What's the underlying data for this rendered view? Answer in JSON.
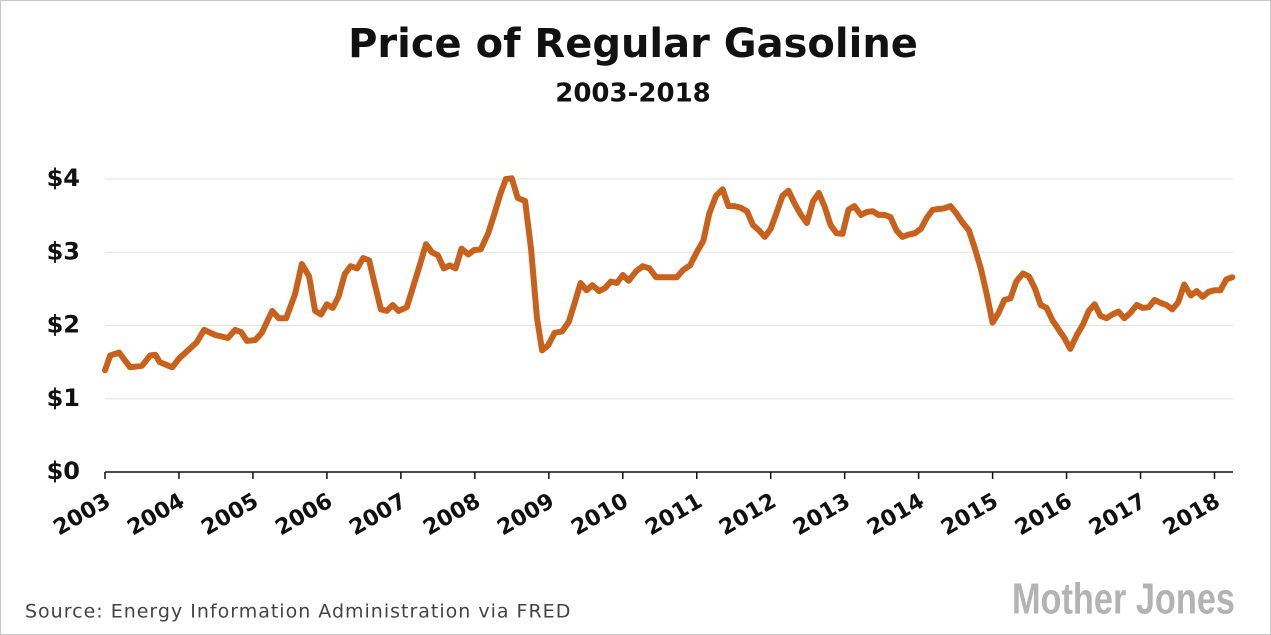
{
  "chart_data": {
    "type": "line",
    "title": "Price of Regular Gasoline",
    "subtitle": "2003-2018",
    "color": "#c8611b",
    "grid": true,
    "source": "Source: Energy Information Administration via FRED",
    "logo": "Mother Jones",
    "xlim": [
      2003,
      2018.25
    ],
    "xticks": [
      2003,
      2004,
      2005,
      2006,
      2007,
      2008,
      2009,
      2010,
      2011,
      2012,
      2013,
      2014,
      2015,
      2016,
      2017,
      2018
    ],
    "ylim": [
      0,
      4
    ],
    "yticks": [
      {
        "value": 0,
        "label": "$0"
      },
      {
        "value": 1,
        "label": "$1"
      },
      {
        "value": 2,
        "label": "$2"
      },
      {
        "value": 3,
        "label": "$3"
      },
      {
        "value": 4,
        "label": "$4"
      }
    ],
    "x": [
      2003.0,
      2003.07,
      2003.19,
      2003.34,
      2003.5,
      2003.61,
      2003.68,
      2003.74,
      2003.91,
      2004.0,
      2004.1,
      2004.24,
      2004.34,
      2004.49,
      2004.66,
      2004.76,
      2004.84,
      2004.92,
      2005.03,
      2005.12,
      2005.26,
      2005.35,
      2005.45,
      2005.57,
      2005.66,
      2005.76,
      2005.84,
      2005.92,
      2006.0,
      2006.08,
      2006.16,
      2006.24,
      2006.32,
      2006.41,
      2006.49,
      2006.57,
      2006.65,
      2006.73,
      2006.81,
      2006.89,
      2006.97,
      2007.08,
      2007.17,
      2007.26,
      2007.34,
      2007.42,
      2007.5,
      2007.58,
      2007.66,
      2007.74,
      2007.82,
      2007.91,
      2007.99,
      2008.08,
      2008.18,
      2008.26,
      2008.34,
      2008.42,
      2008.5,
      2008.58,
      2008.68,
      2008.76,
      2008.84,
      2008.91,
      2008.99,
      2009.08,
      2009.18,
      2009.27,
      2009.35,
      2009.43,
      2009.51,
      2009.59,
      2009.68,
      2009.76,
      2009.84,
      2009.92,
      2010.0,
      2010.08,
      2010.18,
      2010.27,
      2010.36,
      2010.45,
      2010.54,
      2010.64,
      2010.73,
      2010.82,
      2010.91,
      2011.0,
      2011.09,
      2011.17,
      2011.26,
      2011.35,
      2011.43,
      2011.51,
      2011.59,
      2011.68,
      2011.76,
      2011.84,
      2011.92,
      2012.0,
      2012.08,
      2012.16,
      2012.24,
      2012.32,
      2012.41,
      2012.49,
      2012.57,
      2012.65,
      2012.73,
      2012.81,
      2012.89,
      2012.97,
      2013.05,
      2013.13,
      2013.22,
      2013.3,
      2013.38,
      2013.46,
      2013.54,
      2013.62,
      2013.7,
      2013.78,
      2013.86,
      2013.95,
      2014.03,
      2014.11,
      2014.19,
      2014.27,
      2014.35,
      2014.43,
      2014.51,
      2014.59,
      2014.68,
      2014.76,
      2014.84,
      2014.92,
      2015.0,
      2015.08,
      2015.16,
      2015.24,
      2015.32,
      2015.41,
      2015.49,
      2015.57,
      2015.65,
      2015.73,
      2015.81,
      2015.89,
      2015.97,
      2016.05,
      2016.14,
      2016.22,
      2016.3,
      2016.38,
      2016.46,
      2016.54,
      2016.62,
      2016.7,
      2016.78,
      2016.86,
      2016.95,
      2017.03,
      2017.11,
      2017.19,
      2017.27,
      2017.35,
      2017.43,
      2017.51,
      2017.59,
      2017.68,
      2017.76,
      2017.84,
      2017.92,
      2018.0,
      2018.08,
      2018.16,
      2018.24
    ],
    "values": [
      1.39,
      1.59,
      1.63,
      1.43,
      1.45,
      1.59,
      1.6,
      1.5,
      1.43,
      1.55,
      1.64,
      1.77,
      1.94,
      1.87,
      1.83,
      1.94,
      1.91,
      1.79,
      1.8,
      1.9,
      2.2,
      2.1,
      2.1,
      2.43,
      2.84,
      2.67,
      2.2,
      2.15,
      2.29,
      2.24,
      2.4,
      2.7,
      2.81,
      2.78,
      2.92,
      2.89,
      2.55,
      2.22,
      2.2,
      2.28,
      2.2,
      2.25,
      2.54,
      2.84,
      3.11,
      3.0,
      2.96,
      2.78,
      2.82,
      2.78,
      3.05,
      2.97,
      3.03,
      3.04,
      3.26,
      3.51,
      3.78,
      4.0,
      4.01,
      3.74,
      3.7,
      3.04,
      2.1,
      1.66,
      1.73,
      1.9,
      1.92,
      2.05,
      2.31,
      2.58,
      2.48,
      2.55,
      2.47,
      2.51,
      2.6,
      2.58,
      2.69,
      2.61,
      2.74,
      2.81,
      2.78,
      2.66,
      2.66,
      2.66,
      2.66,
      2.76,
      2.82,
      3.0,
      3.16,
      3.53,
      3.77,
      3.86,
      3.63,
      3.63,
      3.61,
      3.56,
      3.37,
      3.3,
      3.21,
      3.32,
      3.54,
      3.77,
      3.84,
      3.67,
      3.51,
      3.4,
      3.69,
      3.81,
      3.62,
      3.37,
      3.26,
      3.25,
      3.58,
      3.63,
      3.51,
      3.55,
      3.56,
      3.51,
      3.51,
      3.48,
      3.3,
      3.21,
      3.24,
      3.26,
      3.32,
      3.47,
      3.58,
      3.59,
      3.6,
      3.63,
      3.53,
      3.41,
      3.3,
      3.05,
      2.78,
      2.43,
      2.04,
      2.17,
      2.35,
      2.37,
      2.6,
      2.71,
      2.67,
      2.51,
      2.28,
      2.24,
      2.07,
      1.95,
      1.83,
      1.68,
      1.87,
      2.01,
      2.2,
      2.29,
      2.13,
      2.1,
      2.15,
      2.19,
      2.1,
      2.17,
      2.28,
      2.24,
      2.25,
      2.35,
      2.31,
      2.28,
      2.22,
      2.32,
      2.56,
      2.41,
      2.47,
      2.39,
      2.46,
      2.48,
      2.48,
      2.63,
      2.66
    ]
  }
}
